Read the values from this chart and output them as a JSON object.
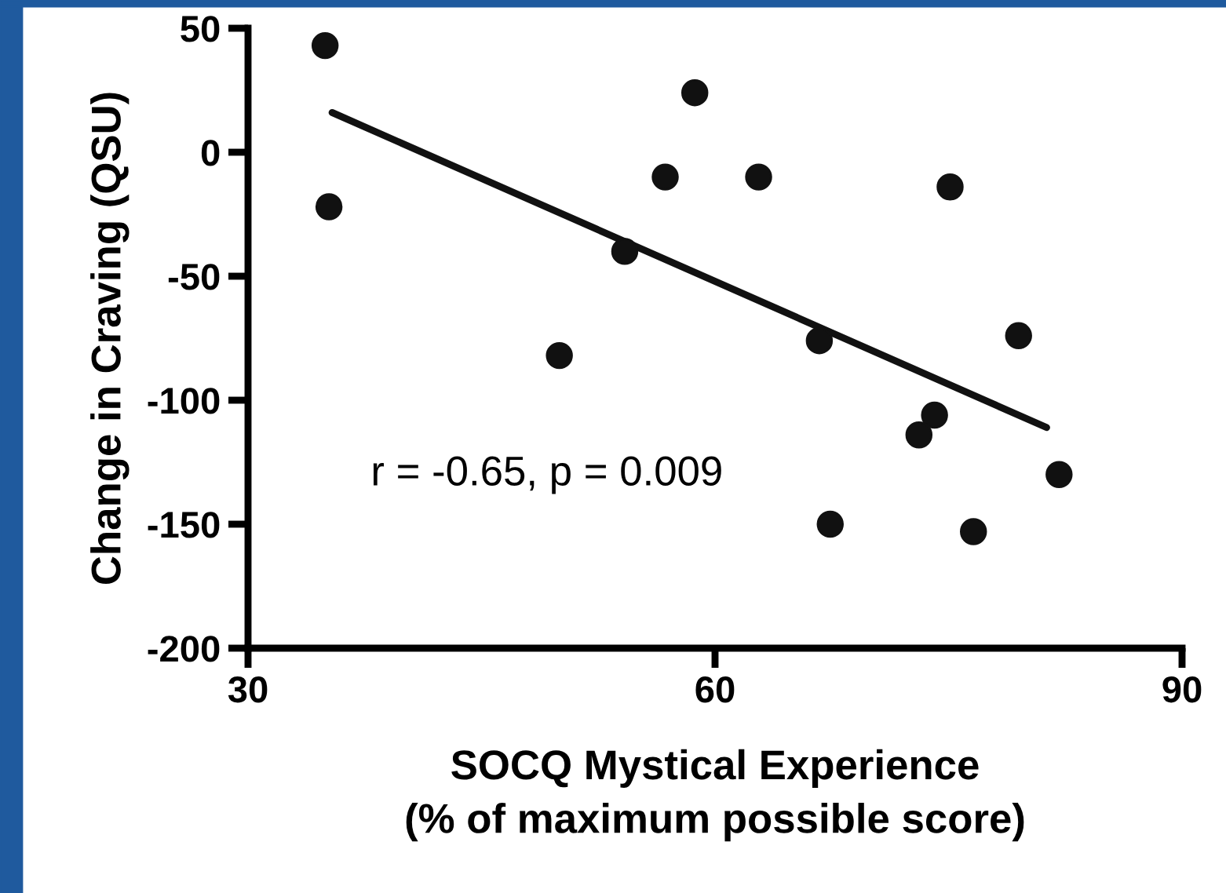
{
  "chart_data": {
    "type": "scatter",
    "xlabel": "SOCQ Mystical Experience\n(% of maximum possible score)",
    "ylabel": "Change in Craving (QSU)",
    "series": [
      {
        "color": "#111111",
        "marker": "circle",
        "x": [
          34.95,
          35.2,
          58.7,
          56.8,
          62.8,
          54.2,
          50.0,
          66.7,
          67.4,
          75.1,
          79.5,
          74.1,
          73.1,
          82.1,
          76.6
        ],
        "values": [
          43,
          -22,
          24,
          -10,
          -10,
          -40,
          -82,
          -76,
          -150,
          -14,
          -74,
          -106,
          -114,
          -130,
          -153
        ]
      },
      {
        "type": "line",
        "color": "#111111",
        "marker": "none",
        "x": [
          35.4,
          81.3
        ],
        "values": [
          16,
          -111
        ]
      }
    ],
    "annotations": [
      "r = -0.65, p = 0.009"
    ],
    "xlim": [
      30,
      90
    ],
    "xticks": [
      30,
      60,
      90
    ],
    "ylim": [
      -200,
      50
    ],
    "yticks": [
      -200,
      -150,
      -100,
      -50,
      0,
      50
    ],
    "grid": false,
    "legend": false
  }
}
